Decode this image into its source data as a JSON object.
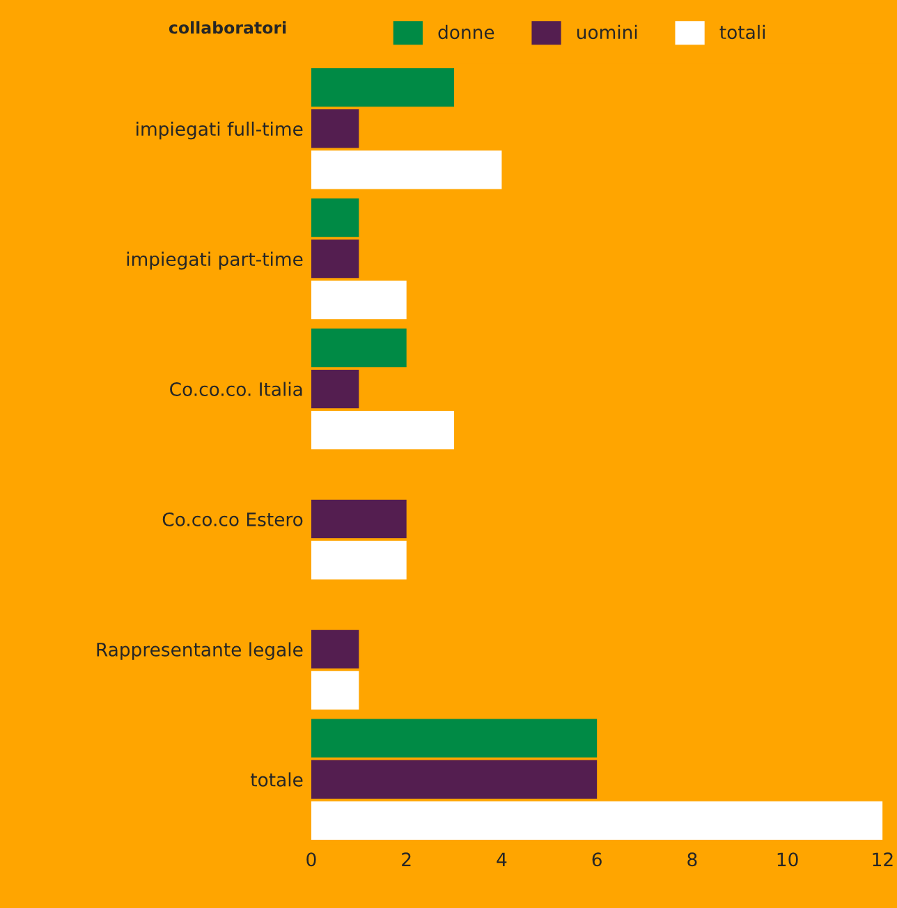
{
  "chart_data": {
    "type": "bar",
    "orientation": "horizontal",
    "legend_title": "collaboratori",
    "legend": "top",
    "categories": [
      "impiegati full-time",
      "impiegati part-time",
      "Co.co.co. Italia",
      "Co.co.co Estero",
      "Rappresentante legale",
      "totale"
    ],
    "series": [
      {
        "name": "donne",
        "color": "#008a45",
        "values": [
          3,
          1,
          2,
          0,
          0,
          6
        ]
      },
      {
        "name": "uomini",
        "color": "#541e50",
        "values": [
          1,
          1,
          1,
          2,
          1,
          6
        ]
      },
      {
        "name": "totali",
        "color": "#ffffff",
        "values": [
          4,
          2,
          3,
          2,
          1,
          12
        ]
      }
    ],
    "xlim": [
      0,
      12
    ],
    "xticks": [
      0,
      2,
      4,
      6,
      8,
      10,
      12
    ],
    "grid": false
  }
}
